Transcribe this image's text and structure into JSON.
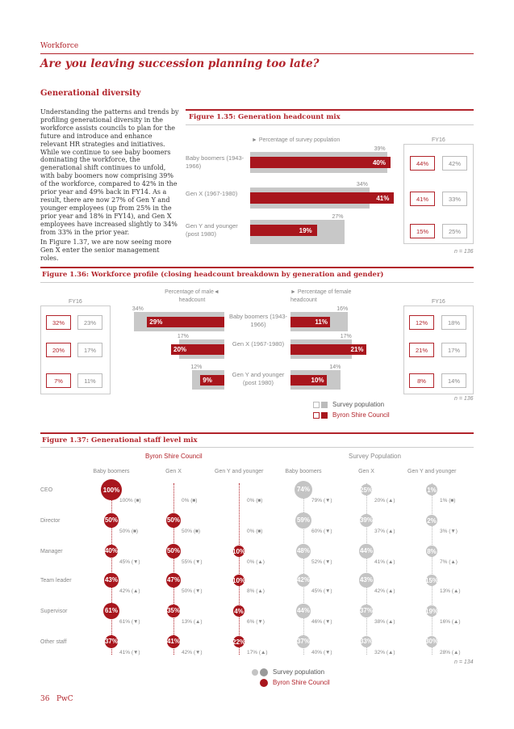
{
  "header": {
    "section": "Workforce",
    "title": "Are you leaving succession planning too late?",
    "subtitle": "Generational diversity"
  },
  "body_text": {
    "para1": "Understanding the patterns and trends by profiling generational diversity in the workforce assists councils to plan for the future and introduce and enhance relevant HR strategies and initiatives. While we continue to see baby boomers dominating the workforce, the generational shift continues to unfold, with baby boomers now comprising 39% of the workforce, compared to 42% in the prior year and 49% back in FY14. As a result, there are now 27% of Gen Y and younger employees (up from 25% in the prior year and 18% in FY14), and Gen X employees have increased slightly to 34% from 33% in the prior year.",
    "para2": "In Figure 1.37, we are now seeing more Gen X enter the senior management roles."
  },
  "fig135": {
    "title": "Figure 1.35: Generation headcount mix",
    "axis_label": "► Percentage of survey population",
    "fy_label": "FY16",
    "note": "n = 136",
    "rows": [
      {
        "label": "Baby boomers (1943-1966)",
        "survey": "39%",
        "council": "40%",
        "box1": "44%",
        "box2": "42%"
      },
      {
        "label": "Gen X (1967-1980)",
        "survey": "34%",
        "council": "41%",
        "box1": "41%",
        "box2": "33%"
      },
      {
        "label": "Gen Y and younger (post 1980)",
        "survey": "27%",
        "council": "19%",
        "box1": "15%",
        "box2": "25%"
      }
    ]
  },
  "fig136": {
    "title": "Figure 1.36: Workforce profile (closing headcount breakdown by generation and gender)",
    "male_label": "Percentage of male◄ headcount",
    "female_label": "► Percentage of female headcount",
    "fy_left": "FY16",
    "fy_right": "FY16",
    "note": "n = 136",
    "legend_survey": "Survey population",
    "legend_council": "Byron Shire Council",
    "rows": [
      {
        "label": "Baby boomers (1943-1966)",
        "m_survey": "34%",
        "m_council": "29%",
        "f_survey": "16%",
        "f_council": "11%",
        "lb1": "32%",
        "lb2": "23%",
        "rb1": "12%",
        "rb2": "18%"
      },
      {
        "label": "Gen X (1967-1980)",
        "m_survey": "17%",
        "m_council": "20%",
        "f_survey": "17%",
        "f_council": "21%",
        "lb1": "20%",
        "lb2": "17%",
        "rb1": "21%",
        "rb2": "17%"
      },
      {
        "label": "Gen Y and younger (post 1980)",
        "m_survey": "12%",
        "m_council": "9%",
        "f_survey": "14%",
        "f_council": "10%",
        "lb1": "7%",
        "lb2": "11%",
        "rb1": "8%",
        "rb2": "14%"
      }
    ]
  },
  "fig137": {
    "title": "Figure 1.37: Generational staff level mix",
    "group_council": "Byron Shire Council",
    "group_survey": "Survey Population",
    "columns": [
      "Baby boomers",
      "Gen X",
      "Gen Y and younger",
      "Baby boomers",
      "Gen X",
      "Gen Y and younger"
    ],
    "note": "n = 134",
    "legend_survey": "Survey population",
    "legend_council": "Byron Shire Council",
    "rows": [
      {
        "label": "CEO",
        "council": [
          "100%",
          "",
          ""
        ],
        "council_sub": [
          "100% (■)",
          "0% (■)",
          "0% (■)"
        ],
        "survey": [
          "74%",
          "25%",
          "1%"
        ],
        "survey_sub": [
          "79% (▼)",
          "20% (▲)",
          "1% (■)"
        ]
      },
      {
        "label": "Director",
        "council": [
          "50%",
          "50%",
          ""
        ],
        "council_sub": [
          "50% (■)",
          "50% (■)",
          "0% (■)"
        ],
        "survey": [
          "59%",
          "39%",
          "2%"
        ],
        "survey_sub": [
          "60% (▼)",
          "37% (▲)",
          "3% (▼)"
        ]
      },
      {
        "label": "Manager",
        "council": [
          "40%",
          "50%",
          "10%"
        ],
        "council_sub": [
          "45% (▼)",
          "55% (▼)",
          "0% (▲)"
        ],
        "survey": [
          "48%",
          "44%",
          "8%"
        ],
        "survey_sub": [
          "52% (▼)",
          "41% (▲)",
          "7% (▲)"
        ]
      },
      {
        "label": "Team leader",
        "council": [
          "43%",
          "47%",
          "10%"
        ],
        "council_sub": [
          "42% (▲)",
          "50% (▼)",
          "8% (▲)"
        ],
        "survey": [
          "42%",
          "43%",
          "15%"
        ],
        "survey_sub": [
          "45% (▼)",
          "42% (▲)",
          "13% (▲)"
        ]
      },
      {
        "label": "Supervisor",
        "council": [
          "61%",
          "35%",
          "4%"
        ],
        "council_sub": [
          "61% (▼)",
          "13% (▲)",
          "6% (▼)"
        ],
        "survey": [
          "44%",
          "37%",
          "19%"
        ],
        "survey_sub": [
          "46% (▼)",
          "38% (▲)",
          "16% (▲)"
        ]
      },
      {
        "label": "Other staff",
        "council": [
          "37%",
          "41%",
          "22%"
        ],
        "council_sub": [
          "41% (▼)",
          "42% (▼)",
          "17% (▲)"
        ],
        "survey": [
          "37%",
          "33%",
          "30%"
        ],
        "survey_sub": [
          "40% (▼)",
          "32% (▲)",
          "28% (▲)"
        ]
      }
    ]
  },
  "footer": {
    "page": "36",
    "brand": "PwC"
  },
  "chart_data": [
    {
      "type": "bar",
      "title": "Figure 1.35: Generation headcount mix",
      "categories": [
        "Baby boomers (1943-1966)",
        "Gen X (1967-1980)",
        "Gen Y and younger (post 1980)"
      ],
      "series": [
        {
          "name": "Survey population",
          "values": [
            39,
            34,
            27
          ]
        },
        {
          "name": "Byron Shire Council",
          "values": [
            40,
            41,
            19
          ]
        }
      ],
      "xlim": [
        0,
        45
      ]
    },
    {
      "type": "bar",
      "title": "Figure 1.36: Workforce profile",
      "categories": [
        "Baby boomers",
        "Gen X",
        "Gen Y and younger"
      ],
      "series": [
        {
          "name": "Male survey",
          "values": [
            34,
            17,
            12
          ]
        },
        {
          "name": "Male council",
          "values": [
            29,
            20,
            9
          ]
        },
        {
          "name": "Female survey",
          "values": [
            16,
            17,
            14
          ]
        },
        {
          "name": "Female council",
          "values": [
            11,
            21,
            10
          ]
        }
      ]
    }
  ]
}
